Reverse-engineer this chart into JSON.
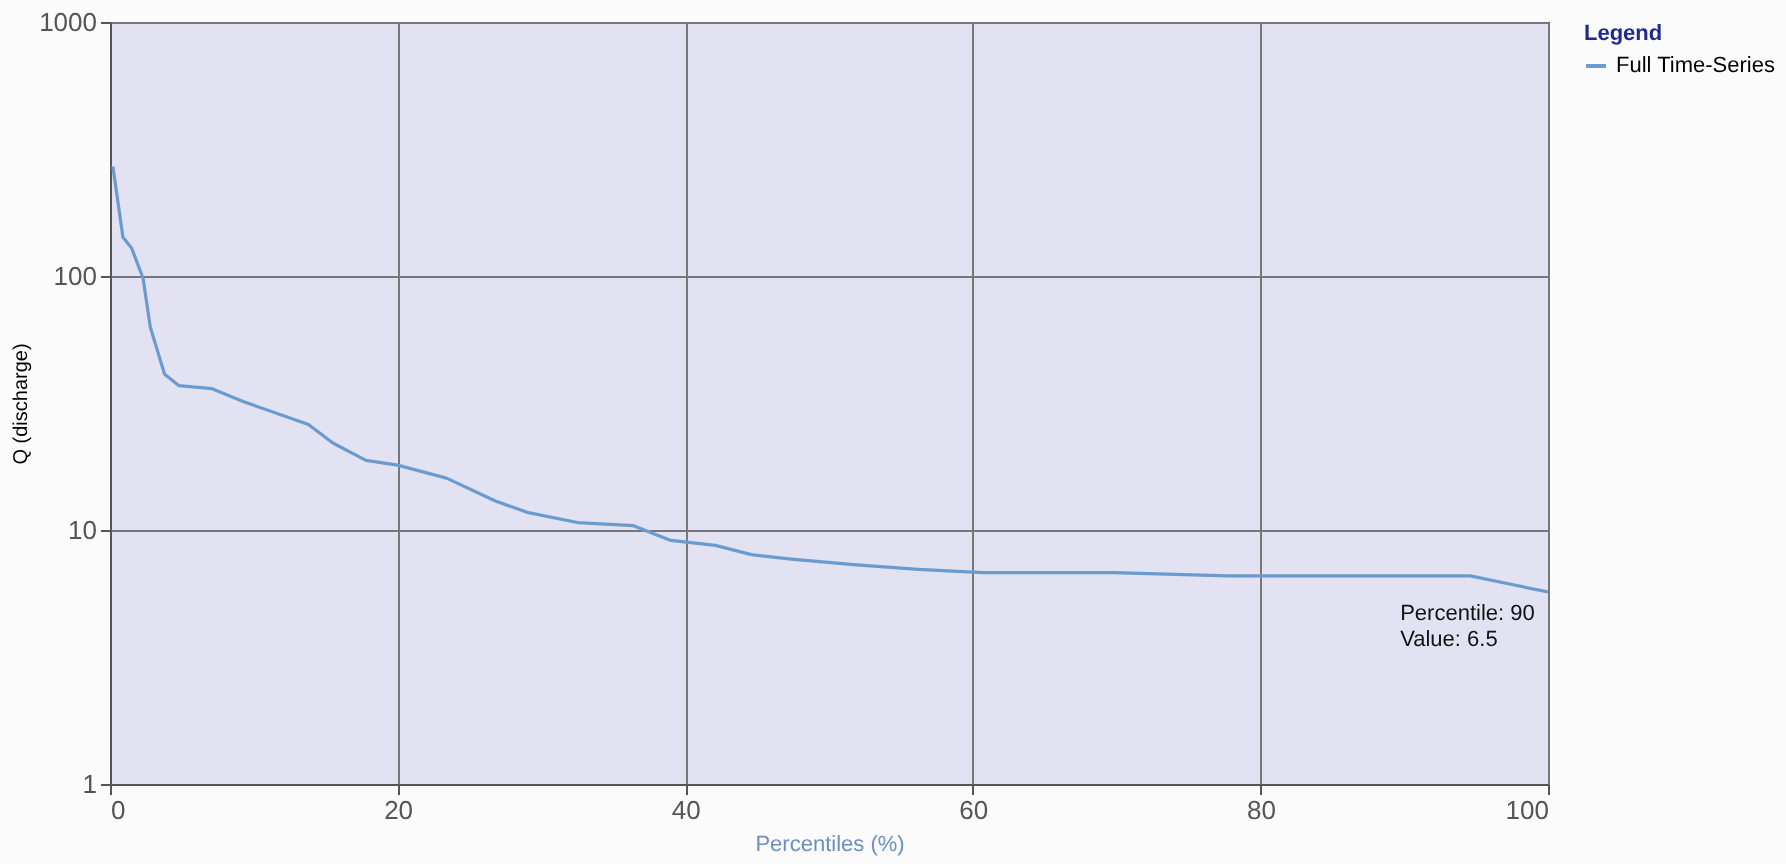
{
  "chart_data": {
    "type": "line",
    "xlabel": "Percentiles (%)",
    "ylabel": "Q (discharge)",
    "legend_title": "Legend",
    "legend": "right",
    "log": true,
    "grid": true,
    "xlim": [
      0,
      100
    ],
    "xticks": [
      0,
      20,
      40,
      60,
      80,
      100
    ],
    "ylim": [
      1,
      1000
    ],
    "yticks": [
      1,
      10,
      100,
      1000
    ],
    "series": [
      {
        "name": "Full Time-Series",
        "color": "#6a9bd0",
        "x": [
          0.2,
          0.9,
          1.5,
          2.3,
          2.8,
          3.8,
          4.8,
          7.1,
          9.3,
          13.8,
          15.5,
          17.8,
          20,
          23.4,
          26.8,
          29.1,
          32.5,
          36.4,
          39,
          42.1,
          44.6,
          47.2,
          51.7,
          56.2,
          60.7,
          69.8,
          77.7,
          94.6,
          97.5,
          100
        ],
        "values": [
          270,
          142,
          129,
          98,
          63,
          41,
          37,
          36,
          32,
          26,
          22,
          18.8,
          18,
          16,
          13,
          11.7,
          10.7,
          10.4,
          9.1,
          8.7,
          8.0,
          7.7,
          7.3,
          7.0,
          6.8,
          6.8,
          6.6,
          6.6,
          6.1,
          5.7
        ]
      }
    ],
    "annotations": [
      {
        "text": "Percentile: 90\nValue: 6.5",
        "x": 90,
        "y": 6.5
      }
    ]
  }
}
